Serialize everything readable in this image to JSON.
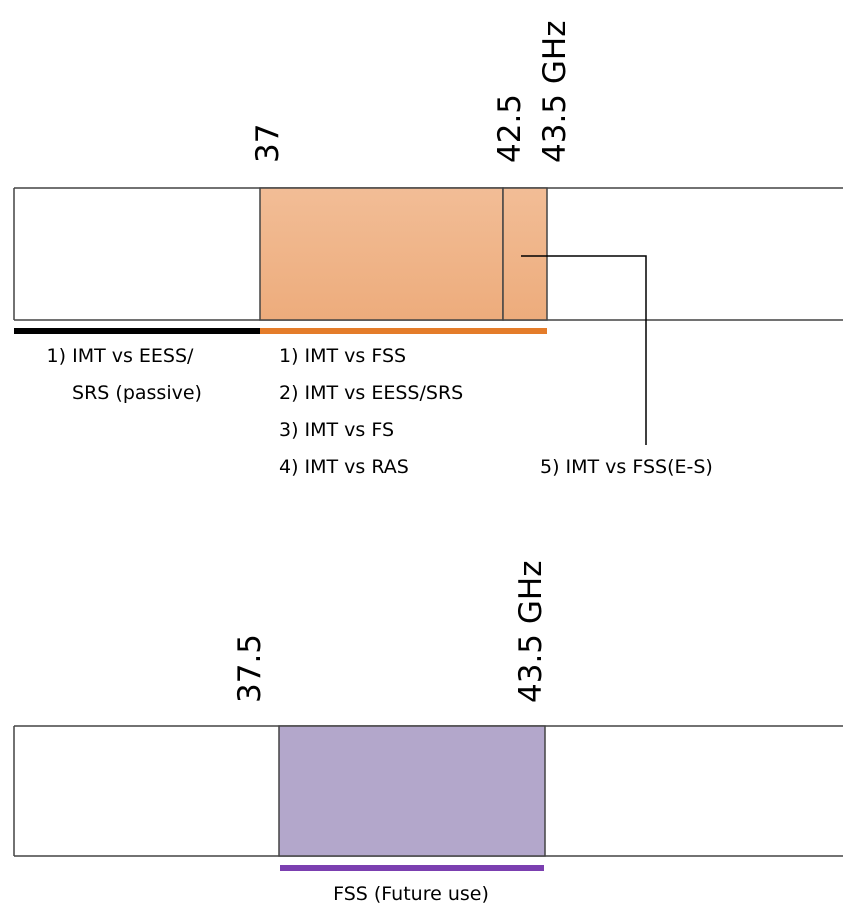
{
  "top_band": {
    "freq_labels": [
      "37",
      "42.5",
      "43.5 GHz"
    ],
    "left_labels": [
      "1) IMT vs EESS/",
      "SRS (passive)"
    ],
    "middle_labels": [
      "1) IMT vs FSS",
      "2) IMT vs EESS/SRS",
      "3) IMT vs FS",
      "4) IMT vs RAS"
    ],
    "callout_label": "5) IMT vs FSS(E-S)",
    "fill_color": "#f0b88c",
    "underline_left_color": "#000000",
    "underline_right_color": "#e47c2a"
  },
  "bottom_band": {
    "freq_labels": [
      "37.5",
      "43.5 GHz"
    ],
    "label": "FSS (Future use)",
    "fill_color": "#b3a7cb",
    "underline_color": "#7b3fb0"
  }
}
